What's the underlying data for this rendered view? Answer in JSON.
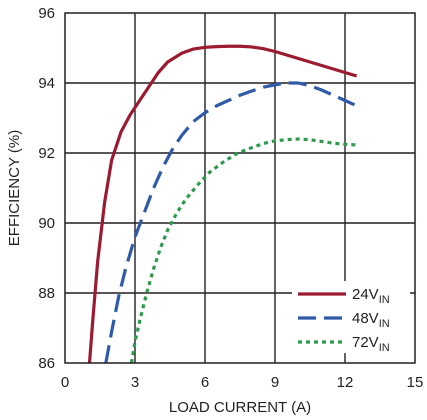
{
  "chart_data": {
    "type": "line",
    "title": "",
    "xlabel": "LOAD CURRENT (A)",
    "ylabel": "EFFICIENCY (%)",
    "xlim": [
      0,
      15
    ],
    "ylim": [
      86,
      96
    ],
    "xticks": [
      0,
      3,
      6,
      9,
      12,
      15
    ],
    "yticks": [
      86,
      88,
      90,
      92,
      94,
      96
    ],
    "grid": true,
    "legend_position": "bottom-right",
    "series": [
      {
        "name": "24V",
        "name_subscript": "IN",
        "color": "#9b1b30",
        "dash": "solid",
        "x": [
          1.05,
          1.2,
          1.4,
          1.7,
          2.0,
          2.4,
          2.8,
          3.2,
          3.6,
          4.0,
          4.4,
          5.0,
          5.5,
          6.0,
          6.5,
          7.0,
          7.5,
          8.0,
          8.5,
          9.0,
          9.5,
          10.0,
          10.5,
          11.0,
          11.5,
          12.0,
          12.5
        ],
        "y": [
          86.0,
          87.3,
          88.9,
          90.6,
          91.8,
          92.6,
          93.1,
          93.5,
          93.9,
          94.3,
          94.6,
          94.85,
          94.97,
          95.02,
          95.04,
          95.05,
          95.05,
          95.03,
          94.98,
          94.9,
          94.8,
          94.7,
          94.6,
          94.5,
          94.4,
          94.3,
          94.2
        ]
      },
      {
        "name": "48V",
        "name_subscript": "IN",
        "color": "#2e5aa8",
        "dash": "long-dash",
        "x": [
          1.75,
          2.0,
          2.3,
          2.6,
          3.0,
          3.4,
          3.8,
          4.2,
          4.6,
          5.0,
          5.5,
          6.0,
          6.5,
          7.0,
          7.5,
          8.0,
          8.5,
          9.0,
          9.5,
          10.0,
          10.5,
          11.0,
          11.5,
          12.0,
          12.5
        ],
        "y": [
          86.0,
          86.9,
          87.9,
          88.7,
          89.6,
          90.3,
          91.0,
          91.6,
          92.1,
          92.5,
          92.9,
          93.15,
          93.35,
          93.5,
          93.65,
          93.77,
          93.88,
          93.95,
          94.0,
          94.0,
          93.92,
          93.8,
          93.65,
          93.5,
          93.35
        ]
      },
      {
        "name": "72V",
        "name_subscript": "IN",
        "color": "#2e9a4e",
        "dash": "dotted",
        "x": [
          2.85,
          3.0,
          3.2,
          3.5,
          3.8,
          4.1,
          4.4,
          4.8,
          5.2,
          5.7,
          6.2,
          6.8,
          7.4,
          8.0,
          8.5,
          9.0,
          9.5,
          10.0,
          10.5,
          11.0,
          11.5,
          12.0,
          12.5
        ],
        "y": [
          86.0,
          86.6,
          87.2,
          88.0,
          88.7,
          89.3,
          89.8,
          90.3,
          90.7,
          91.1,
          91.45,
          91.75,
          92.0,
          92.15,
          92.27,
          92.35,
          92.38,
          92.4,
          92.38,
          92.33,
          92.28,
          92.25,
          92.23
        ]
      }
    ]
  }
}
